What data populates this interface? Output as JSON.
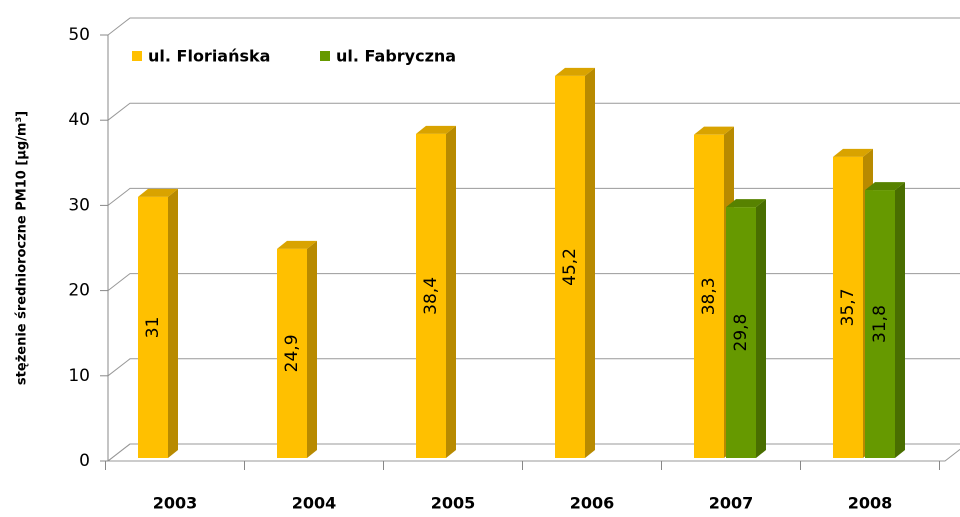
{
  "chart_data": {
    "type": "bar3d",
    "y_label": "stężenie średnioroczne PM10 [µg/m³]",
    "categories": [
      "2003",
      "2004",
      "2005",
      "2006",
      "2007",
      "2008"
    ],
    "series": [
      {
        "name": "ul. Floriańska",
        "color": "#ffc000",
        "values": [
          31,
          24.9,
          38.4,
          45.2,
          38.3,
          35.7
        ],
        "value_labels": [
          "31",
          "24,9",
          "38,4",
          "45,2",
          "38,3",
          "35,7"
        ]
      },
      {
        "name": "ul. Fabryczna",
        "color": "#669900",
        "values": [
          null,
          null,
          null,
          null,
          29.8,
          31.8
        ],
        "value_labels": [
          null,
          null,
          null,
          null,
          "29,8",
          "31,8"
        ]
      }
    ],
    "ylim": [
      0,
      50
    ],
    "yticks": [
      0,
      10,
      20,
      30,
      40,
      50
    ],
    "grid": true,
    "legend": "top-left"
  }
}
